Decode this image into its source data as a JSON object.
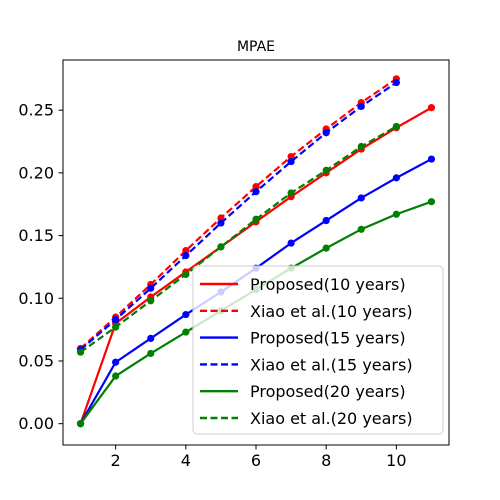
{
  "chart_data": {
    "type": "line",
    "title": "MPAE",
    "xlabel": "",
    "ylabel": "",
    "xlim": [
      0.5,
      11.5
    ],
    "ylim": [
      -0.017,
      0.29
    ],
    "xticks": [
      2,
      4,
      6,
      8,
      10
    ],
    "xtick_labels": [
      "2",
      "4",
      "6",
      "8",
      "10"
    ],
    "yticks": [
      0.0,
      0.05,
      0.1,
      0.15,
      0.2,
      0.25
    ],
    "ytick_labels": [
      "0.00",
      "0.05",
      "0.10",
      "0.15",
      "0.20",
      "0.25"
    ],
    "grid": false,
    "legend_position": "lower-right",
    "series": [
      {
        "name": "Proposed(10 years)",
        "color": "#ff0000",
        "dashed": false,
        "x": [
          1,
          2,
          3,
          4,
          5,
          6,
          7,
          8,
          9,
          10,
          11
        ],
        "y": [
          0.0,
          0.08,
          0.101,
          0.121,
          0.141,
          0.161,
          0.181,
          0.2,
          0.219,
          0.236,
          0.252
        ]
      },
      {
        "name": "Xiao et al.(10 years)",
        "color": "#ff0000",
        "dashed": true,
        "x": [
          1,
          2,
          3,
          4,
          5,
          6,
          7,
          8,
          9,
          10
        ],
        "y": [
          0.06,
          0.085,
          0.111,
          0.138,
          0.164,
          0.189,
          0.213,
          0.235,
          0.256,
          0.275
        ]
      },
      {
        "name": "Proposed(15 years)",
        "color": "#0000ff",
        "dashed": false,
        "x": [
          1,
          2,
          3,
          4,
          5,
          6,
          7,
          8,
          9,
          10,
          11
        ],
        "y": [
          0.0,
          0.049,
          0.068,
          0.087,
          0.105,
          0.124,
          0.144,
          0.162,
          0.18,
          0.196,
          0.211
        ]
      },
      {
        "name": "Xiao et al.(15 years)",
        "color": "#0000ff",
        "dashed": true,
        "x": [
          1,
          2,
          3,
          4,
          5,
          6,
          7,
          8,
          9,
          10
        ],
        "y": [
          0.059,
          0.083,
          0.108,
          0.134,
          0.16,
          0.185,
          0.209,
          0.232,
          0.253,
          0.272
        ]
      },
      {
        "name": "Proposed(20 years)",
        "color": "#008000",
        "dashed": false,
        "x": [
          1,
          2,
          3,
          4,
          5,
          6,
          7,
          8,
          9,
          10,
          11
        ],
        "y": [
          0.0,
          0.038,
          0.056,
          0.073,
          0.09,
          0.107,
          0.124,
          0.14,
          0.155,
          0.167,
          0.177
        ]
      },
      {
        "name": "Xiao et al.(20 years)",
        "color": "#008000",
        "dashed": true,
        "x": [
          1,
          2,
          3,
          4,
          5,
          6,
          7,
          8,
          9,
          10
        ],
        "y": [
          0.057,
          0.077,
          0.098,
          0.119,
          0.141,
          0.163,
          0.184,
          0.202,
          0.221,
          0.237
        ]
      }
    ]
  }
}
